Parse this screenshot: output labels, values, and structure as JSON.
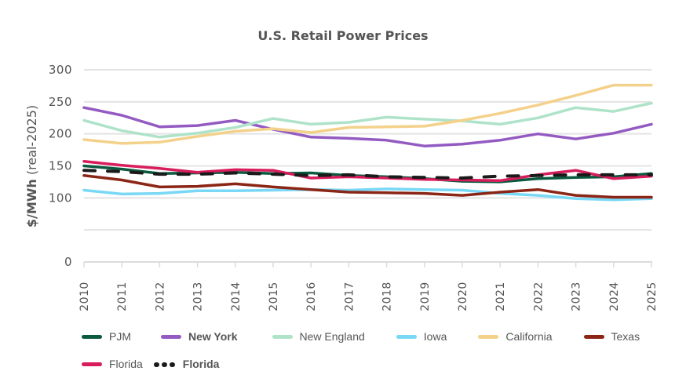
{
  "chart_data": {
    "type": "line",
    "title": "U.S. Retail Power Prices",
    "xlabel": "",
    "ylabel": "$/MWh (real-2025)",
    "ylabel_parts": {
      "bold": "$/MWh",
      "normal": " (real-2025)"
    },
    "ylim": [
      0,
      300
    ],
    "yticks": [
      0,
      50,
      100,
      150,
      200,
      250,
      300
    ],
    "ytick_labels": [
      "0",
      "",
      "100",
      "150",
      "200",
      "250",
      "300"
    ],
    "grid": true,
    "x": [
      "2010",
      "2011",
      "2012",
      "2013",
      "2014",
      "2015",
      "2016",
      "2017",
      "2018",
      "2019",
      "2020",
      "2021",
      "2022",
      "2023",
      "2024",
      "2025"
    ],
    "legend_position": "bottom",
    "series": [
      {
        "name": "PJM",
        "color": "#0b5a3f",
        "dashed": false,
        "bold_label": false,
        "values": [
          150,
          145,
          138,
          139,
          140,
          138,
          139,
          135,
          133,
          130,
          126,
          125,
          130,
          132,
          133,
          138
        ]
      },
      {
        "name": "New York",
        "color": "#935bc2",
        "dashed": false,
        "bold_label": true,
        "values": [
          241,
          229,
          211,
          213,
          221,
          207,
          195,
          193,
          190,
          181,
          184,
          190,
          200,
          192,
          201,
          215
        ]
      },
      {
        "name": "New England",
        "color": "#aee3c9",
        "dashed": false,
        "bold_label": false,
        "values": [
          221,
          205,
          195,
          201,
          210,
          224,
          215,
          218,
          226,
          223,
          220,
          215,
          225,
          241,
          235,
          248
        ]
      },
      {
        "name": "Iowa",
        "color": "#78d8f5",
        "dashed": false,
        "bold_label": false,
        "values": [
          112,
          106,
          107,
          111,
          111,
          112,
          113,
          112,
          114,
          113,
          112,
          107,
          104,
          99,
          97,
          99
        ]
      },
      {
        "name": "California",
        "color": "#f4d18a",
        "dashed": false,
        "bold_label": false,
        "values": [
          191,
          185,
          187,
          196,
          204,
          208,
          202,
          210,
          211,
          212,
          221,
          232,
          245,
          260,
          276,
          276
        ]
      },
      {
        "name": "Texas",
        "color": "#8b2515",
        "dashed": false,
        "bold_label": false,
        "values": [
          135,
          128,
          117,
          118,
          122,
          117,
          113,
          109,
          108,
          107,
          104,
          109,
          113,
          104,
          101,
          101
        ]
      },
      {
        "name": "Florida",
        "color": "#d81d5d",
        "dashed": false,
        "bold_label": false,
        "values": [
          157,
          151,
          146,
          140,
          144,
          143,
          131,
          133,
          131,
          129,
          128,
          127,
          136,
          143,
          130,
          134
        ]
      },
      {
        "name": "Florida",
        "color": "#1a1a1a",
        "dashed": true,
        "bold_label": true,
        "values": [
          143,
          141,
          137,
          137,
          139,
          137,
          135,
          136,
          133,
          132,
          131,
          134,
          135,
          136,
          136,
          136
        ]
      }
    ]
  }
}
